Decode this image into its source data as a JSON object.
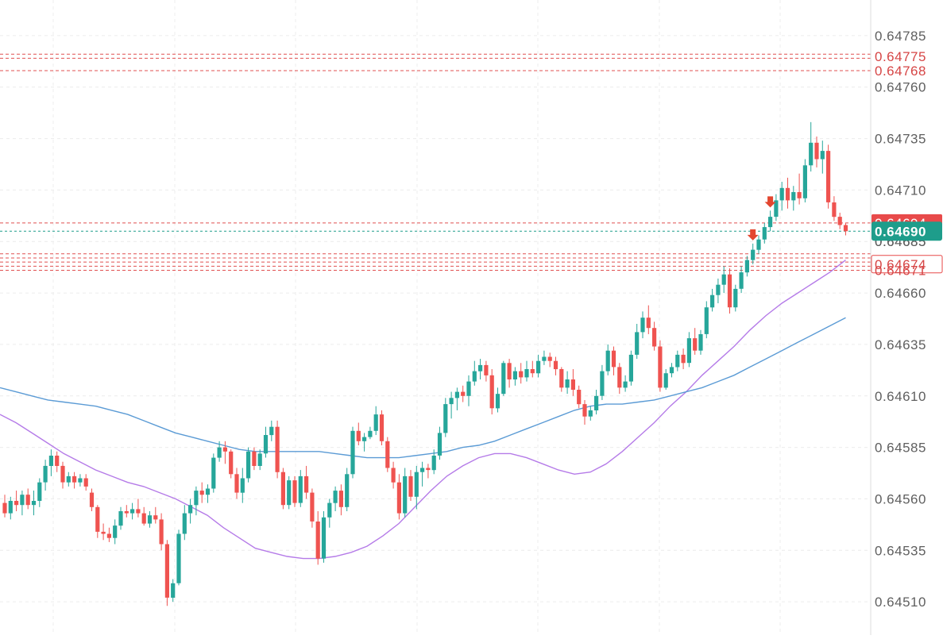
{
  "chart_data": {
    "type": "candlestick",
    "ylim": [
      0.64495,
      0.648
    ],
    "y_ticks": [
      "0.64785",
      "0.64760",
      "0.64735",
      "0.64710",
      "0.64685",
      "0.64660",
      "0.64635",
      "0.64610",
      "0.64585",
      "0.64560",
      "0.64535",
      "0.64510"
    ],
    "grid": true,
    "colors": {
      "up": "#26a69a",
      "down": "#ef5350",
      "ma_fast": "#b57be8",
      "ma_slow": "#5b9bd5",
      "level_line": "#e05050",
      "current_price_bg": "#1e9d8b",
      "level_label_bg": "#e84a4a",
      "axis_text": "#5f5f5f",
      "level_text": "#d64545",
      "grid": "#ececec"
    },
    "candles": [
      [
        0.64558,
        0.64562,
        0.64551,
        0.64553
      ],
      [
        0.64553,
        0.64561,
        0.6455,
        0.64559
      ],
      [
        0.64559,
        0.64564,
        0.64554,
        0.64557
      ],
      [
        0.64557,
        0.64564,
        0.64552,
        0.64562
      ],
      [
        0.64562,
        0.64565,
        0.64555,
        0.64557
      ],
      [
        0.64557,
        0.64564,
        0.64552,
        0.64559
      ],
      [
        0.64559,
        0.6457,
        0.64556,
        0.64568
      ],
      [
        0.64568,
        0.64579,
        0.64564,
        0.64576
      ],
      [
        0.64576,
        0.64584,
        0.64571,
        0.64581
      ],
      [
        0.64581,
        0.64583,
        0.64573,
        0.64576
      ],
      [
        0.64576,
        0.64578,
        0.64565,
        0.64568
      ],
      [
        0.64568,
        0.64573,
        0.64566,
        0.64571
      ],
      [
        0.64571,
        0.64573,
        0.64565,
        0.64568
      ],
      [
        0.64568,
        0.64572,
        0.64566,
        0.6457
      ],
      [
        0.6457,
        0.64572,
        0.64564,
        0.64566
      ],
      [
        0.64563,
        0.64565,
        0.64554,
        0.64556
      ],
      [
        0.64556,
        0.64557,
        0.64541,
        0.64544
      ],
      [
        0.64544,
        0.64548,
        0.6454,
        0.64543
      ],
      [
        0.64543,
        0.64546,
        0.64539,
        0.64541
      ],
      [
        0.64541,
        0.6455,
        0.64538,
        0.64547
      ],
      [
        0.64547,
        0.64556,
        0.64545,
        0.64554
      ],
      [
        0.64554,
        0.64557,
        0.64551,
        0.64553
      ],
      [
        0.64553,
        0.64558,
        0.6455,
        0.64555
      ],
      [
        0.64555,
        0.6456,
        0.64551,
        0.64553
      ],
      [
        0.64553,
        0.64556,
        0.64547,
        0.64548
      ],
      [
        0.64548,
        0.64554,
        0.64546,
        0.64552
      ],
      [
        0.64552,
        0.64556,
        0.64548,
        0.6455
      ],
      [
        0.6455,
        0.64553,
        0.64535,
        0.64538
      ],
      [
        0.64538,
        0.6454,
        0.64508,
        0.64512
      ],
      [
        0.64512,
        0.64521,
        0.6451,
        0.64519
      ],
      [
        0.64519,
        0.64545,
        0.64518,
        0.64543
      ],
      [
        0.64543,
        0.64557,
        0.6454,
        0.64553
      ],
      [
        0.64553,
        0.6456,
        0.64548,
        0.64557
      ],
      [
        0.64557,
        0.64566,
        0.64552,
        0.64564
      ],
      [
        0.64564,
        0.64568,
        0.64558,
        0.64562
      ],
      [
        0.64562,
        0.64567,
        0.64558,
        0.64565
      ],
      [
        0.64565,
        0.64582,
        0.64563,
        0.6458
      ],
      [
        0.6458,
        0.64588,
        0.64578,
        0.64585
      ],
      [
        0.64585,
        0.64588,
        0.64577,
        0.64583
      ],
      [
        0.64583,
        0.64584,
        0.6457,
        0.64572
      ],
      [
        0.64572,
        0.64575,
        0.6456,
        0.64563
      ],
      [
        0.64563,
        0.64575,
        0.64558,
        0.6457
      ],
      [
        0.6457,
        0.64585,
        0.64568,
        0.64583
      ],
      [
        0.64583,
        0.64585,
        0.64574,
        0.64576
      ],
      [
        0.64576,
        0.64584,
        0.64574,
        0.64582
      ],
      [
        0.64582,
        0.64595,
        0.6458,
        0.64591
      ],
      [
        0.64591,
        0.64598,
        0.64588,
        0.64595
      ],
      [
        0.64595,
        0.64598,
        0.6457,
        0.64573
      ],
      [
        0.64573,
        0.64575,
        0.64555,
        0.64557
      ],
      [
        0.64557,
        0.64571,
        0.64555,
        0.64569
      ],
      [
        0.64569,
        0.64571,
        0.64556,
        0.64558
      ],
      [
        0.64558,
        0.64574,
        0.64556,
        0.64571
      ],
      [
        0.64571,
        0.64576,
        0.6456,
        0.64563
      ],
      [
        0.64563,
        0.64565,
        0.64546,
        0.64549
      ],
      [
        0.64549,
        0.64554,
        0.64528,
        0.64531
      ],
      [
        0.64531,
        0.64554,
        0.64529,
        0.64551
      ],
      [
        0.64551,
        0.6456,
        0.64546,
        0.64558
      ],
      [
        0.64558,
        0.64566,
        0.64554,
        0.64564
      ],
      [
        0.64564,
        0.64567,
        0.64552,
        0.64556
      ],
      [
        0.64556,
        0.64575,
        0.64554,
        0.64572
      ],
      [
        0.64572,
        0.64595,
        0.6457,
        0.64593
      ],
      [
        0.64593,
        0.64597,
        0.64586,
        0.64588
      ],
      [
        0.64588,
        0.64592,
        0.64583,
        0.6459
      ],
      [
        0.6459,
        0.64595,
        0.64589,
        0.64593
      ],
      [
        0.64593,
        0.64605,
        0.64591,
        0.64601
      ],
      [
        0.64601,
        0.64603,
        0.64586,
        0.64588
      ],
      [
        0.64588,
        0.6459,
        0.64573,
        0.64575
      ],
      [
        0.64575,
        0.64578,
        0.64565,
        0.64568
      ],
      [
        0.64568,
        0.64572,
        0.6455,
        0.64553
      ],
      [
        0.64553,
        0.64575,
        0.64551,
        0.64571
      ],
      [
        0.64571,
        0.64574,
        0.64559,
        0.64561
      ],
      [
        0.64561,
        0.64576,
        0.64555,
        0.64573
      ],
      [
        0.64573,
        0.64578,
        0.64566,
        0.64575
      ],
      [
        0.64575,
        0.64577,
        0.6457,
        0.64574
      ],
      [
        0.64574,
        0.64584,
        0.64572,
        0.64581
      ],
      [
        0.64581,
        0.64595,
        0.64579,
        0.64592
      ],
      [
        0.64592,
        0.64609,
        0.6459,
        0.64606
      ],
      [
        0.64606,
        0.64612,
        0.64599,
        0.64609
      ],
      [
        0.64609,
        0.64614,
        0.64603,
        0.64612
      ],
      [
        0.64612,
        0.64615,
        0.64607,
        0.6461
      ],
      [
        0.6461,
        0.6462,
        0.64605,
        0.64617
      ],
      [
        0.64617,
        0.64627,
        0.64615,
        0.64622
      ],
      [
        0.64622,
        0.64628,
        0.64618,
        0.64625
      ],
      [
        0.64625,
        0.64627,
        0.64617,
        0.6462
      ],
      [
        0.6462,
        0.64623,
        0.64601,
        0.64604
      ],
      [
        0.64604,
        0.64614,
        0.64602,
        0.64611
      ],
      [
        0.64611,
        0.64627,
        0.6461,
        0.64626
      ],
      [
        0.64626,
        0.64628,
        0.64614,
        0.64618
      ],
      [
        0.64618,
        0.64624,
        0.64615,
        0.64622
      ],
      [
        0.64622,
        0.64626,
        0.64616,
        0.64619
      ],
      [
        0.64619,
        0.64627,
        0.64617,
        0.64623
      ],
      [
        0.64623,
        0.64627,
        0.64619,
        0.64621
      ],
      [
        0.64621,
        0.6463,
        0.64619,
        0.64627
      ],
      [
        0.64627,
        0.64632,
        0.64625,
        0.64629
      ],
      [
        0.64629,
        0.64631,
        0.64624,
        0.64627
      ],
      [
        0.64627,
        0.64629,
        0.6462,
        0.64623
      ],
      [
        0.64623,
        0.64624,
        0.64612,
        0.64614
      ],
      [
        0.64614,
        0.64622,
        0.64611,
        0.64618
      ],
      [
        0.64618,
        0.64623,
        0.6461,
        0.64613
      ],
      [
        0.64613,
        0.64615,
        0.64604,
        0.64606
      ],
      [
        0.64606,
        0.64608,
        0.64596,
        0.646
      ],
      [
        0.646,
        0.64605,
        0.64598,
        0.64603
      ],
      [
        0.64603,
        0.64613,
        0.64601,
        0.6461
      ],
      [
        0.6461,
        0.64625,
        0.64608,
        0.64622
      ],
      [
        0.64622,
        0.64635,
        0.6462,
        0.64632
      ],
      [
        0.64632,
        0.64634,
        0.6462,
        0.64624
      ],
      [
        0.64624,
        0.64626,
        0.64611,
        0.64614
      ],
      [
        0.64614,
        0.6462,
        0.64612,
        0.64617
      ],
      [
        0.64617,
        0.64632,
        0.64615,
        0.6463
      ],
      [
        0.6463,
        0.64645,
        0.64628,
        0.64641
      ],
      [
        0.64641,
        0.64651,
        0.64638,
        0.64648
      ],
      [
        0.64648,
        0.64654,
        0.6464,
        0.64643
      ],
      [
        0.64643,
        0.64646,
        0.64632,
        0.64634
      ],
      [
        0.64634,
        0.64637,
        0.64612,
        0.64614
      ],
      [
        0.64614,
        0.64623,
        0.64613,
        0.64621
      ],
      [
        0.64621,
        0.64626,
        0.64619,
        0.64624
      ],
      [
        0.64624,
        0.64632,
        0.64622,
        0.6463
      ],
      [
        0.6463,
        0.64633,
        0.64623,
        0.64626
      ],
      [
        0.64626,
        0.64641,
        0.64624,
        0.64638
      ],
      [
        0.64638,
        0.64643,
        0.6463,
        0.64632
      ],
      [
        0.64632,
        0.64642,
        0.6463,
        0.6464
      ],
      [
        0.6464,
        0.64656,
        0.64638,
        0.64653
      ],
      [
        0.64653,
        0.64662,
        0.64651,
        0.64659
      ],
      [
        0.64659,
        0.64667,
        0.64655,
        0.64664
      ],
      [
        0.64664,
        0.64673,
        0.6466,
        0.64669
      ],
      [
        0.64669,
        0.64672,
        0.6465,
        0.64653
      ],
      [
        0.64653,
        0.64664,
        0.64651,
        0.64662
      ],
      [
        0.64662,
        0.64673,
        0.6466,
        0.6467
      ],
      [
        0.6467,
        0.64678,
        0.64668,
        0.64676
      ],
      [
        0.64676,
        0.64684,
        0.64674,
        0.64681
      ],
      [
        0.64681,
        0.64688,
        0.64679,
        0.64686
      ],
      [
        0.64686,
        0.64694,
        0.64684,
        0.64692
      ],
      [
        0.64692,
        0.647,
        0.6469,
        0.64697
      ],
      [
        0.64697,
        0.64708,
        0.64695,
        0.64705
      ],
      [
        0.64705,
        0.64714,
        0.647,
        0.64711
      ],
      [
        0.64711,
        0.64716,
        0.64701,
        0.64705
      ],
      [
        0.64705,
        0.64712,
        0.647,
        0.64709
      ],
      [
        0.64709,
        0.64718,
        0.64703,
        0.64706
      ],
      [
        0.64706,
        0.64725,
        0.64704,
        0.64722
      ],
      [
        0.64722,
        0.64743,
        0.64719,
        0.64733
      ],
      [
        0.64733,
        0.64736,
        0.64721,
        0.64725
      ],
      [
        0.64725,
        0.64734,
        0.64718,
        0.64729
      ],
      [
        0.64729,
        0.64732,
        0.64701,
        0.64704
      ],
      [
        0.64704,
        0.64707,
        0.64695,
        0.64697
      ],
      [
        0.64697,
        0.64699,
        0.64691,
        0.64693
      ],
      [
        0.64693,
        0.64694,
        0.64688,
        0.6469
      ]
    ],
    "moving_averages": [
      {
        "values": [
          0.64601,
          0.64597,
          0.64592,
          0.64587,
          0.64582,
          0.64578,
          0.64574,
          0.64571,
          0.64568,
          0.64566,
          0.64563,
          0.6456,
          0.64556,
          0.64552,
          0.64546,
          0.64541,
          0.64536,
          0.64534,
          0.64532,
          0.64531,
          0.64531,
          0.64532,
          0.64534,
          0.64537,
          0.64542,
          0.64548,
          0.64556,
          0.64564,
          0.64571,
          0.64576,
          0.6458,
          0.64582,
          0.64582,
          0.6458,
          0.64577,
          0.64574,
          0.64572,
          0.64573,
          0.64577,
          0.64583,
          0.6459,
          0.64597,
          0.64605,
          0.64612,
          0.6462,
          0.64627,
          0.64634,
          0.64642,
          0.64649,
          0.64655,
          0.6466,
          0.64665,
          0.6467,
          0.64676
        ]
      },
      {
        "values": [
          0.64614,
          0.64612,
          0.6461,
          0.64608,
          0.64607,
          0.64606,
          0.64605,
          0.64603,
          0.64601,
          0.64598,
          0.64595,
          0.64592,
          0.6459,
          0.64588,
          0.64586,
          0.64584,
          0.64583,
          0.64583,
          0.64583,
          0.64583,
          0.64583,
          0.64582,
          0.64581,
          0.6458,
          0.6458,
          0.6458,
          0.64581,
          0.64582,
          0.64583,
          0.64585,
          0.64586,
          0.64588,
          0.64591,
          0.64594,
          0.64597,
          0.646,
          0.64603,
          0.64605,
          0.64606,
          0.64606,
          0.64607,
          0.64608,
          0.6461,
          0.64612,
          0.64614,
          0.64617,
          0.6462,
          0.64624,
          0.64628,
          0.64632,
          0.64636,
          0.6464,
          0.64644,
          0.64648
        ]
      }
    ],
    "horizontal_lines": [
      {
        "price": 0.64776
      },
      {
        "price": 0.64774
      },
      {
        "price": 0.64768
      },
      {
        "price": 0.64694
      },
      {
        "price": 0.64679
      },
      {
        "price": 0.64677
      },
      {
        "price": 0.64675
      },
      {
        "price": 0.64673
      },
      {
        "price": 0.64671
      }
    ],
    "current_price": "0.64690",
    "level_labels": [
      {
        "text": "0.64775",
        "price": 0.64775
      },
      {
        "text": "0.64768",
        "price": 0.64768
      },
      {
        "text": "0.64694",
        "price": 0.64694,
        "filled": true
      },
      {
        "text": "0.64685",
        "price": 0.64685,
        "plain": true
      },
      {
        "text": "0.64674",
        "price": 0.64674,
        "boxed": true
      },
      {
        "text": "0.64671",
        "price": 0.64671
      }
    ],
    "signal_markers": [
      {
        "candle_index": 129,
        "direction": "down"
      },
      {
        "candle_index": 132,
        "direction": "down"
      }
    ]
  }
}
